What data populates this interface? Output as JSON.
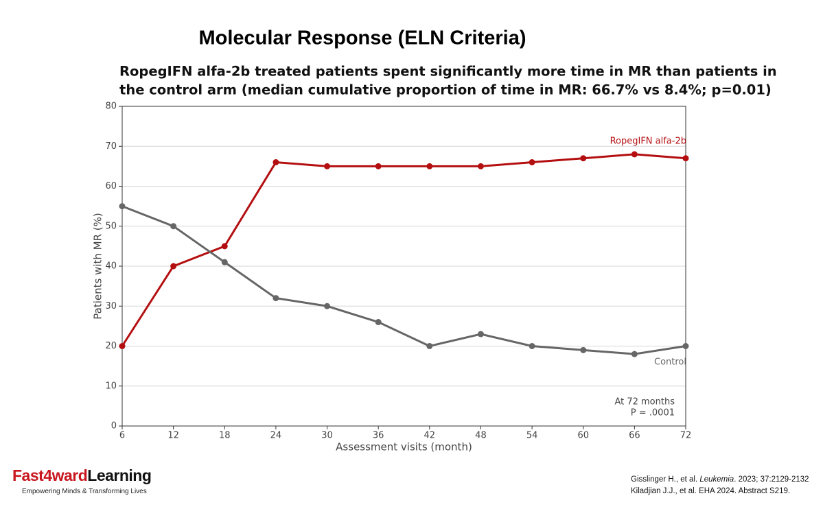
{
  "chart_data": {
    "type": "line",
    "title": "Molecular Response (ELN Criteria)",
    "subtitle": [
      "RopegIFN alfa-2b treated patients spent significantly more time in MR than patients in",
      "the control arm (median cumulative proportion of time in MR: 66.7% vs 8.4%; p=0.01)"
    ],
    "x_label": "Assessment visits (month)",
    "y_label": "Patients with MR (%)",
    "x": [
      6,
      12,
      18,
      24,
      30,
      36,
      42,
      48,
      54,
      60,
      66,
      72
    ],
    "series": [
      {
        "name": "RopegIFN alfa-2b",
        "color": "#b40f10",
        "values": [
          20,
          40,
          45,
          66,
          65,
          65,
          65,
          65,
          66,
          67,
          68,
          67
        ]
      },
      {
        "name": "Control",
        "color": "#666666",
        "values": [
          55,
          50,
          41,
          32,
          30,
          26,
          20,
          23,
          20,
          19,
          18,
          20
        ]
      }
    ],
    "xlim": [
      6,
      72
    ],
    "xticks": [
      6,
      12,
      18,
      24,
      30,
      36,
      42,
      48,
      54,
      60,
      66,
      72
    ],
    "ylim": [
      0,
      80
    ],
    "yticks": [
      0,
      10,
      20,
      30,
      40,
      50,
      60,
      70,
      80
    ],
    "grid": true,
    "annotations": [
      "At 72 months",
      "P = .0001"
    ]
  },
  "logo": {
    "name": [
      "Fast4ward",
      "Learning"
    ],
    "tagline": "Empowering Minds & Transforming Lives"
  },
  "references": [
    [
      "Gisslinger H., et al. ",
      "Leukemia",
      ". 2023; 37:2129-2132"
    ],
    [
      "Kiladjian J.J., et al. EHA 2024. Abstract S219."
    ]
  ]
}
